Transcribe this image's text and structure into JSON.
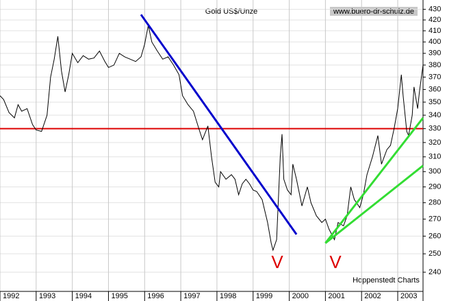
{
  "chart_data": {
    "type": "line",
    "title": "Gold US$/Unze",
    "source": "www.buero-dr-schulz.de",
    "credit": "Hoppenstedt Charts",
    "annotations": [
      "V",
      "V"
    ],
    "x": [
      1992.0,
      1992.1,
      1992.25,
      1992.4,
      1992.5,
      1992.6,
      1992.75,
      1992.9,
      1993.0,
      1993.15,
      1993.3,
      1993.4,
      1993.5,
      1993.6,
      1993.7,
      1993.8,
      1993.9,
      1994.0,
      1994.15,
      1994.3,
      1994.45,
      1994.6,
      1994.75,
      1994.9,
      1995.0,
      1995.15,
      1995.3,
      1995.45,
      1995.6,
      1995.75,
      1995.9,
      1996.0,
      1996.1,
      1996.2,
      1996.35,
      1996.5,
      1996.65,
      1996.8,
      1996.95,
      1997.05,
      1997.2,
      1997.35,
      1997.5,
      1997.6,
      1997.75,
      1997.85,
      1997.95,
      1998.05,
      1998.1,
      1998.25,
      1998.4,
      1998.5,
      1998.6,
      1998.7,
      1998.8,
      1998.9,
      1999.0,
      1999.1,
      1999.25,
      1999.4,
      1999.5,
      1999.55,
      1999.65,
      1999.75,
      1999.8,
      1999.85,
      1999.95,
      2000.05,
      2000.1,
      2000.2,
      2000.35,
      2000.5,
      2000.6,
      2000.75,
      2000.9,
      2001.0,
      2001.1,
      2001.25,
      2001.35,
      2001.5,
      2001.6,
      2001.7,
      2001.8,
      2001.95,
      2002.05,
      2002.15,
      2002.3,
      2002.45,
      2002.55,
      2002.7,
      2002.8,
      2002.9,
      2003.0,
      2003.1,
      2003.15,
      2003.25,
      2003.3,
      2003.4,
      2003.45,
      2003.55,
      2003.6,
      2003.7
    ],
    "values": [
      355,
      352,
      342,
      338,
      348,
      343,
      345,
      333,
      329,
      328,
      340,
      370,
      385,
      405,
      375,
      358,
      372,
      390,
      382,
      388,
      385,
      386,
      392,
      383,
      378,
      380,
      390,
      387,
      385,
      383,
      387,
      398,
      415,
      400,
      392,
      385,
      387,
      380,
      372,
      355,
      348,
      343,
      330,
      322,
      332,
      310,
      293,
      290,
      300,
      295,
      298,
      295,
      285,
      292,
      295,
      292,
      288,
      287,
      282,
      268,
      256,
      252,
      258,
      310,
      326,
      295,
      288,
      285,
      305,
      295,
      278,
      290,
      280,
      272,
      268,
      270,
      264,
      258,
      268,
      266,
      272,
      290,
      282,
      277,
      285,
      298,
      310,
      325,
      305,
      315,
      318,
      330,
      345,
      372,
      355,
      328,
      325,
      340,
      362,
      345,
      358,
      380
    ],
    "color": "#000000",
    "hline": {
      "value": 330,
      "color": "#dd0000"
    },
    "trendlines": [
      {
        "color": "#0000cc",
        "x": [
          1995.9,
          2000.2
        ],
        "y": [
          425,
          261
        ]
      },
      {
        "color": "#33dd33",
        "x": [
          2001.0,
          2003.7
        ],
        "y": [
          256,
          338
        ]
      },
      {
        "color": "#33dd33",
        "x": [
          2001.0,
          2003.7
        ],
        "y": [
          256,
          304
        ]
      }
    ],
    "xlim": [
      1992,
      2003.7
    ],
    "xticks": [
      1992,
      1993,
      1994,
      1995,
      1996,
      1997,
      1998,
      1999,
      2000,
      2001,
      2002,
      2003
    ],
    "ylim": [
      230,
      439
    ],
    "yticks": [
      240,
      250,
      260,
      270,
      280,
      290,
      300,
      310,
      320,
      330,
      340,
      350,
      360,
      370,
      380,
      390,
      400,
      410,
      420,
      430
    ],
    "log_y": true,
    "grid": true
  }
}
